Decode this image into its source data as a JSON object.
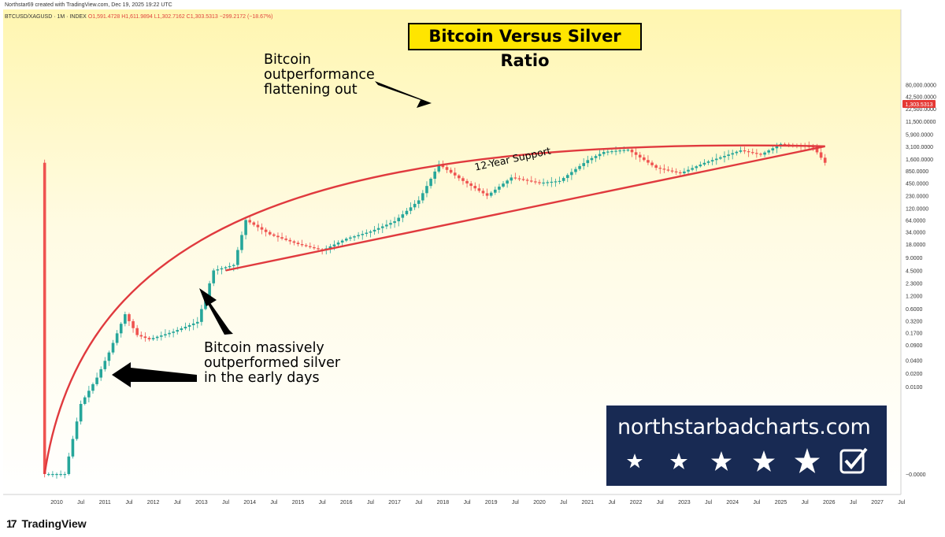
{
  "header": {
    "attribution": "Northstar69 created with TradingView.com, Dec 19, 2025 19:22 UTC",
    "symbol_line": "BTCUSD/XAGUSD · 1M · INDEX",
    "ohlc": {
      "o": "O1,591.4728",
      "h": "H1,611.9894",
      "l": "L1,302.7162",
      "c": "C1,303.5313",
      "chg": "−299.2172 (−18.67%)"
    }
  },
  "title": "Bitcoin Versus Silver Ratio",
  "annotations": {
    "top": "Bitcoin\noutperformance\nflattening out",
    "bottom": "Bitcoin massively\noutperformed silver\nin the early days",
    "support_label": "12-Year Support"
  },
  "logo": {
    "url": "northstarbadcharts.com",
    "icons": [
      "star-icon",
      "star-icon",
      "star-icon",
      "star-icon",
      "star-icon",
      "checkbox-icon"
    ]
  },
  "brand": {
    "mark": "17",
    "name": "TradingView"
  },
  "price_badge": "1,303.5313",
  "colors": {
    "up": "#26a69a",
    "down": "#ef5350",
    "line": "#e03a3e",
    "title_bg": "#ffe500",
    "logo_bg": "#182a53"
  },
  "chart_data": {
    "type": "candlestick",
    "title": "Bitcoin Versus Silver Ratio",
    "y_scale": "log",
    "y_ticks": [
      "80,000.0000",
      "42,500.0000",
      "22,500.0000",
      "11,500.0000",
      "5,900.0000",
      "3,100.0000",
      "1,600.0000",
      "850.0000",
      "450.0000",
      "230.0000",
      "120.0000",
      "64.0000",
      "34.0000",
      "18.0000",
      "9.0000",
      "4.5000",
      "2.3000",
      "1.2000",
      "0.6000",
      "0.3200",
      "0.1700",
      "0.0900",
      "0.0400",
      "0.0200",
      "0.0100",
      "−0.0000"
    ],
    "x_ticks": [
      "2010",
      "Jul",
      "2011",
      "Jul",
      "2012",
      "Jul",
      "2013",
      "Jul",
      "2014",
      "Jul",
      "2015",
      "Jul",
      "2016",
      "Jul",
      "2017",
      "Jul",
      "2018",
      "Jul",
      "2019",
      "Jul",
      "2020",
      "Jul",
      "2021",
      "Jul",
      "2022",
      "Jul",
      "2023",
      "Jul",
      "2024",
      "Jul",
      "2025",
      "Jul",
      "2026",
      "Jul",
      "2027",
      "Jul"
    ],
    "last_value": 1303.5313,
    "series": [
      {
        "date": "2009-10",
        "value": 0.0001
      },
      {
        "date": "2010-03",
        "value": 0.0001
      },
      {
        "date": "2010-07",
        "value": 0.004
      },
      {
        "date": "2010-11",
        "value": 0.016
      },
      {
        "date": "2011-02",
        "value": 0.06
      },
      {
        "date": "2011-06",
        "value": 0.45
      },
      {
        "date": "2011-09",
        "value": 0.15
      },
      {
        "date": "2011-12",
        "value": 0.12
      },
      {
        "date": "2012-06",
        "value": 0.18
      },
      {
        "date": "2012-12",
        "value": 0.3
      },
      {
        "date": "2013-04",
        "value": 4.5
      },
      {
        "date": "2013-09",
        "value": 6
      },
      {
        "date": "2013-12",
        "value": 64
      },
      {
        "date": "2014-06",
        "value": 30
      },
      {
        "date": "2015-01",
        "value": 18
      },
      {
        "date": "2015-07",
        "value": 13
      },
      {
        "date": "2016-01",
        "value": 24
      },
      {
        "date": "2016-07",
        "value": 35
      },
      {
        "date": "2017-01",
        "value": 60
      },
      {
        "date": "2017-07",
        "value": 180
      },
      {
        "date": "2017-12",
        "value": 1200
      },
      {
        "date": "2018-06",
        "value": 500
      },
      {
        "date": "2018-12",
        "value": 230
      },
      {
        "date": "2019-06",
        "value": 600
      },
      {
        "date": "2020-01",
        "value": 450
      },
      {
        "date": "2020-06",
        "value": 500
      },
      {
        "date": "2021-01",
        "value": 1500
      },
      {
        "date": "2021-05",
        "value": 2300
      },
      {
        "date": "2021-11",
        "value": 2600
      },
      {
        "date": "2022-06",
        "value": 1000
      },
      {
        "date": "2022-12",
        "value": 750
      },
      {
        "date": "2023-06",
        "value": 1300
      },
      {
        "date": "2024-03",
        "value": 2500
      },
      {
        "date": "2024-08",
        "value": 2000
      },
      {
        "date": "2025-01",
        "value": 3500
      },
      {
        "date": "2025-09",
        "value": 3000
      },
      {
        "date": "2025-11",
        "value": 1700
      },
      {
        "date": "2025-12",
        "value": 1303.5313
      }
    ],
    "lines": [
      {
        "name": "12-Year Support",
        "from": {
          "date": "2013-07",
          "value": 4.5
        },
        "to": {
          "date": "2025-12",
          "value": 3100
        }
      },
      {
        "name": "",
        "type": "upper-arc",
        "from": {
          "date": "2009-10",
          "value": 0.0001
        },
        "to": {
          "date": "2025-12",
          "value": 3100
        }
      }
    ]
  }
}
